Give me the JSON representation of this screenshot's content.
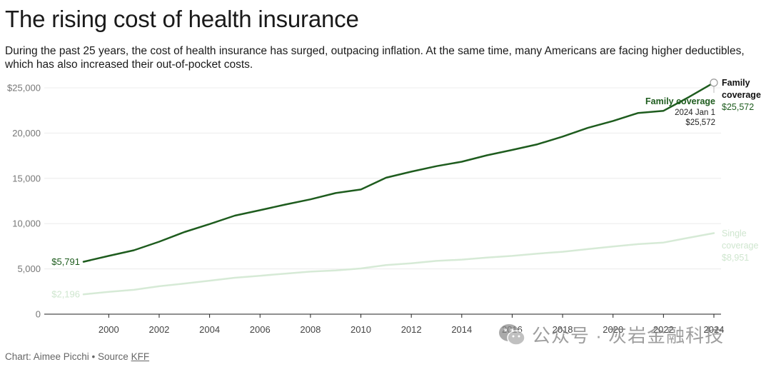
{
  "chart_data": {
    "type": "line",
    "title": "The rising cost of health insurance",
    "subtitle": "During the past 25 years, the cost of health insurance has surged, outpacing inflation. At the same time, many Americans are facing higher deductibles, which has also increased their out-of-pocket costs.",
    "x": [
      1999,
      2000,
      2001,
      2002,
      2003,
      2004,
      2005,
      2006,
      2007,
      2008,
      2009,
      2010,
      2011,
      2012,
      2013,
      2014,
      2015,
      2016,
      2017,
      2018,
      2019,
      2020,
      2021,
      2022,
      2023,
      2024
    ],
    "xticks": [
      "2000",
      "2002",
      "2004",
      "2006",
      "2008",
      "2010",
      "2012",
      "2014",
      "2016",
      "2018",
      "2020",
      "2022",
      "2024"
    ],
    "yticks": [
      "$25,000",
      "20,000",
      "15,000",
      "10,000",
      "5,000",
      "0"
    ],
    "ylim": [
      0,
      25000
    ],
    "grid": true,
    "series": [
      {
        "name": "Family coverage",
        "color": "#1e5c1e",
        "values": [
          5791,
          6438,
          7061,
          8003,
          9068,
          9950,
          10880,
          11480,
          12106,
          12680,
          13375,
          13770,
          15073,
          15745,
          16351,
          16834,
          17545,
          18142,
          18764,
          19616,
          20576,
          21342,
          22221,
          22463,
          23968,
          25572
        ],
        "start_label": "$5,791",
        "end_label_line1": "Family",
        "end_label_line2": "coverage",
        "end_label_value": "$25,572"
      },
      {
        "name": "Single coverage",
        "color": "#d6ead6",
        "values": [
          2196,
          2471,
          2689,
          3083,
          3383,
          3695,
          4024,
          4242,
          4479,
          4704,
          4824,
          5049,
          5429,
          5615,
          5884,
          6025,
          6251,
          6435,
          6690,
          6896,
          7188,
          7470,
          7739,
          7911,
          8435,
          8951
        ],
        "start_label": "$2,196",
        "end_label_line1": "Single",
        "end_label_line2": "coverage",
        "end_label_value": "$8,951"
      }
    ],
    "tooltip": {
      "series": "Family coverage",
      "date": "2024 Jan 1",
      "value": "$25,572"
    }
  },
  "footer": {
    "credit": "Chart: Aimee Picchi • Source ",
    "source_link": "KFF"
  },
  "watermark": {
    "text": "公众号 · 灰岩金融科技",
    "icon": "wechat-icon"
  }
}
